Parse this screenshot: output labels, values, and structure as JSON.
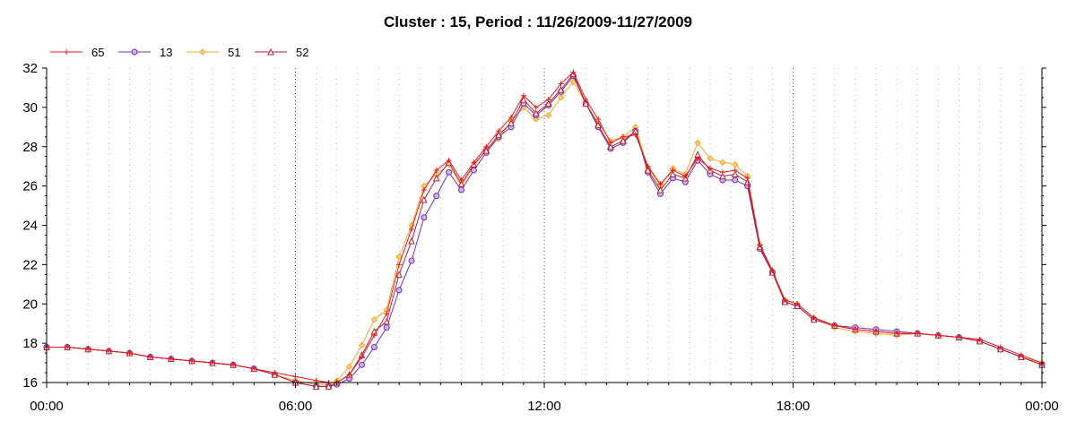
{
  "chart_data": {
    "type": "line",
    "title": "Cluster : 15, Period : 11/26/2009-11/27/2009",
    "xlabel": "",
    "ylabel": "",
    "x_ticks": [
      "00:00",
      "06:00",
      "12:00",
      "18:00",
      "00:00"
    ],
    "x_tick_hours": [
      0,
      6,
      12,
      18,
      24
    ],
    "xlim": [
      0,
      24
    ],
    "ylim": [
      16,
      32
    ],
    "y_ticks": [
      16,
      18,
      20,
      22,
      24,
      26,
      28,
      30,
      32
    ],
    "grid": "vertical-dotted",
    "legend_position": "top-left",
    "x_hours": [
      0,
      0.5,
      1,
      1.5,
      2,
      2.5,
      3,
      3.5,
      4,
      4.5,
      5,
      5.5,
      6,
      6.5,
      6.8,
      7,
      7.3,
      7.6,
      7.9,
      8.2,
      8.5,
      8.8,
      9.1,
      9.4,
      9.7,
      10,
      10.3,
      10.6,
      10.9,
      11.2,
      11.5,
      11.8,
      12.1,
      12.4,
      12.7,
      13,
      13.3,
      13.6,
      13.9,
      14.2,
      14.5,
      14.8,
      15.1,
      15.4,
      15.7,
      16,
      16.3,
      16.6,
      16.9,
      17.2,
      17.5,
      17.8,
      18.1,
      18.5,
      19,
      19.5,
      20,
      20.5,
      21,
      21.5,
      22,
      22.5,
      23,
      23.5,
      24
    ],
    "series": [
      {
        "name": "65",
        "color": "#e41a1c",
        "marker": "plus",
        "values": [
          17.8,
          17.8,
          17.7,
          17.6,
          17.5,
          17.3,
          17.2,
          17.1,
          17.0,
          16.9,
          16.7,
          16.5,
          16.3,
          16.1,
          16.0,
          16.0,
          16.4,
          17.3,
          18.4,
          19.5,
          22.0,
          23.8,
          25.8,
          26.8,
          27.3,
          26.3,
          27.2,
          28.0,
          28.8,
          29.5,
          30.6,
          30.0,
          30.4,
          31.2,
          31.8,
          30.4,
          29.4,
          28.2,
          28.5,
          28.6,
          27.0,
          26.1,
          26.8,
          26.5,
          27.4,
          26.9,
          26.7,
          26.8,
          26.4,
          23.0,
          21.7,
          20.2,
          20.0,
          19.3,
          18.9,
          18.7,
          18.6,
          18.5,
          18.5,
          18.4,
          18.3,
          18.2,
          17.8,
          17.4,
          17.0
        ]
      },
      {
        "name": "13",
        "color": "#7b2ca8",
        "marker": "circle",
        "values": [
          17.8,
          17.8,
          17.7,
          17.6,
          17.5,
          17.3,
          17.2,
          17.1,
          17.0,
          16.9,
          16.7,
          16.4,
          16.0,
          15.8,
          15.8,
          15.9,
          16.2,
          16.9,
          17.8,
          18.8,
          20.7,
          22.2,
          24.4,
          25.5,
          26.7,
          25.8,
          26.8,
          27.7,
          28.5,
          29.0,
          30.2,
          29.6,
          30.1,
          30.8,
          31.6,
          30.2,
          29.0,
          27.9,
          28.2,
          28.8,
          26.7,
          25.6,
          26.4,
          26.2,
          27.3,
          26.6,
          26.3,
          26.3,
          26.0,
          22.8,
          21.6,
          20.1,
          19.9,
          19.2,
          18.9,
          18.8,
          18.7,
          18.6,
          18.5,
          18.4,
          18.3,
          18.1,
          17.7,
          17.3,
          16.9
        ]
      },
      {
        "name": "51",
        "color": "#f0a830",
        "marker": "diamond",
        "values": [
          17.8,
          17.8,
          17.7,
          17.6,
          17.5,
          17.3,
          17.2,
          17.1,
          17.0,
          16.9,
          16.7,
          16.4,
          16.1,
          15.9,
          15.9,
          16.1,
          16.8,
          17.9,
          19.2,
          19.7,
          22.4,
          24.0,
          26.0,
          26.6,
          27.1,
          26.0,
          27.0,
          27.9,
          28.4,
          29.3,
          30.0,
          29.4,
          29.6,
          30.5,
          31.3,
          30.2,
          29.2,
          28.3,
          28.5,
          29.0,
          26.9,
          26.0,
          26.9,
          26.6,
          28.2,
          27.4,
          27.2,
          27.1,
          26.5,
          23.0,
          21.7,
          20.2,
          20.0,
          19.3,
          18.8,
          18.6,
          18.5,
          18.4,
          18.5,
          18.4,
          18.3,
          18.1,
          17.7,
          17.3,
          17.0
        ]
      },
      {
        "name": "52",
        "color": "#b22234",
        "marker": "triangle",
        "values": [
          17.8,
          17.8,
          17.7,
          17.6,
          17.5,
          17.3,
          17.2,
          17.1,
          17.0,
          16.9,
          16.7,
          16.4,
          16.0,
          15.8,
          15.8,
          16.0,
          16.4,
          17.4,
          18.6,
          19.1,
          21.5,
          23.2,
          25.3,
          26.4,
          27.2,
          26.1,
          27.1,
          27.8,
          28.6,
          29.2,
          30.4,
          29.7,
          30.2,
          30.9,
          31.7,
          30.2,
          29.1,
          28.0,
          28.3,
          28.8,
          26.8,
          25.8,
          26.6,
          26.4,
          27.6,
          26.8,
          26.5,
          26.6,
          26.2,
          22.9,
          21.6,
          20.1,
          19.9,
          19.2,
          18.9,
          18.7,
          18.6,
          18.5,
          18.5,
          18.4,
          18.3,
          18.1,
          17.7,
          17.3,
          16.9
        ]
      }
    ]
  }
}
